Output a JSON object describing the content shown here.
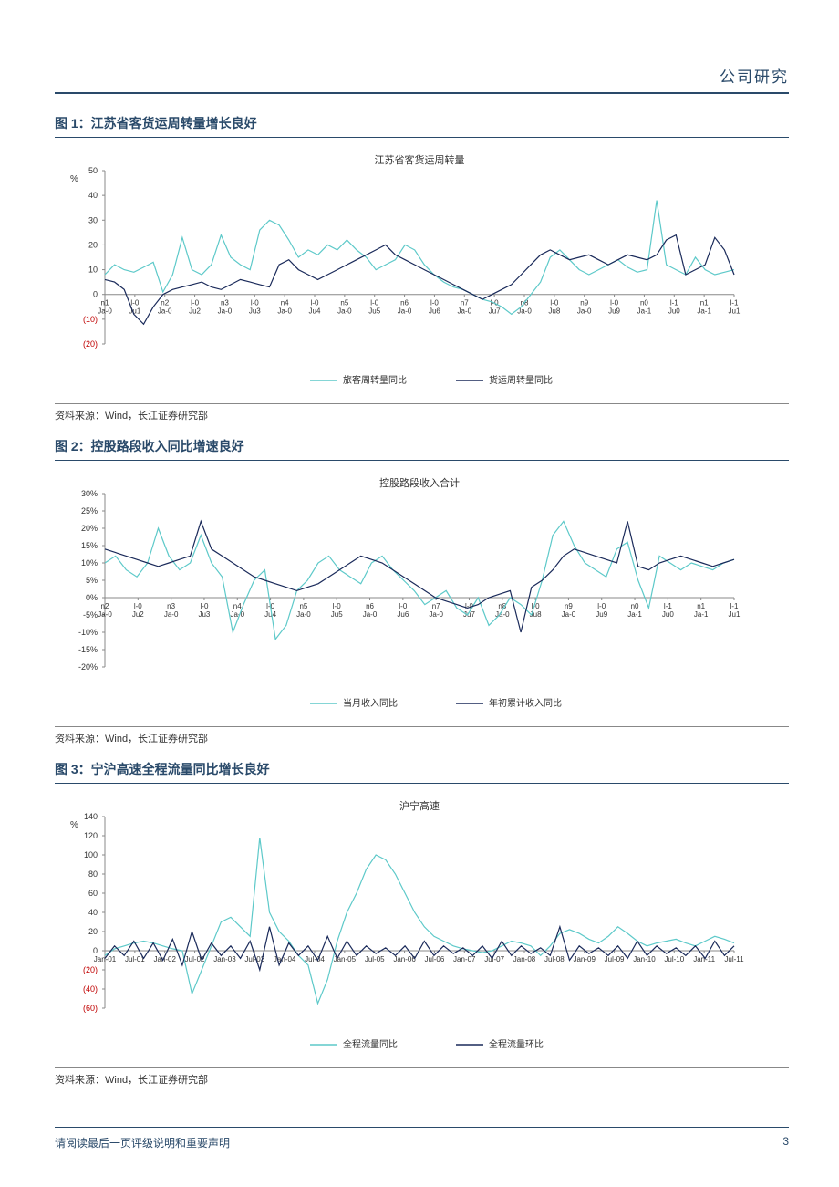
{
  "header": {
    "title": "公司研究"
  },
  "figures": [
    {
      "title": "图 1：江苏省客货运周转量增长良好",
      "chart": {
        "type": "line",
        "inner_title": "江苏省客货运周转量",
        "y_unit": "%",
        "ylim": [
          -20,
          50
        ],
        "ytick_step": 10,
        "neg_color": "#c00000",
        "xlabels": [
          "n1 Ja-0",
          "l-0 Ju1",
          "n2 Ja-0",
          "l-0 Ju2",
          "n3 Ja-0",
          "l-0 Ju3",
          "n4 Ja-0",
          "l-0 Ju4",
          "n5 Ja-0",
          "l-0 Ju5",
          "n6 Ja-0",
          "l-0 Ju6",
          "n7 Ja-0",
          "l-0 Ju7",
          "n8 Ja-0",
          "l-0 Ju8",
          "n9 Ja-0",
          "l-0 Ju9",
          "n0 Ja-1",
          "l-1 Ju0",
          "n1 Ja-1",
          "l-1 Ju1"
        ],
        "series": [
          {
            "name": "旅客周转量同比",
            "color": "#5dc9c9",
            "values": [
              8,
              12,
              10,
              9,
              11,
              13,
              1,
              8,
              23,
              10,
              8,
              12,
              24,
              15,
              12,
              10,
              26,
              30,
              28,
              22,
              15,
              18,
              16,
              20,
              18,
              22,
              18,
              15,
              10,
              12,
              14,
              20,
              18,
              12,
              8,
              5,
              3,
              2,
              0,
              -2,
              -3,
              -5,
              -8,
              -5,
              0,
              5,
              15,
              18,
              14,
              10,
              8,
              10,
              12,
              14,
              11,
              9,
              10,
              38,
              12,
              10,
              8,
              15,
              10,
              8,
              9,
              10
            ]
          },
          {
            "name": "货运周转量同比",
            "color": "#1a2a5a",
            "values": [
              6,
              5,
              2,
              -8,
              -12,
              -5,
              0,
              2,
              3,
              4,
              5,
              3,
              2,
              4,
              6,
              5,
              4,
              3,
              12,
              14,
              10,
              8,
              6,
              8,
              10,
              12,
              14,
              16,
              18,
              20,
              16,
              14,
              12,
              10,
              8,
              6,
              4,
              2,
              0,
              -2,
              0,
              2,
              4,
              8,
              12,
              16,
              18,
              16,
              14,
              15,
              16,
              14,
              12,
              14,
              16,
              15,
              14,
              16,
              22,
              24,
              8,
              10,
              12,
              23,
              18,
              8
            ]
          }
        ],
        "legend_y_offset": 0
      },
      "source": "资料来源：Wind，长江证券研究部"
    },
    {
      "title": "图 2：控股路段收入同比增速良好",
      "chart": {
        "type": "line",
        "inner_title": "控股路段收入合计",
        "y_unit": "",
        "ylim": [
          -20,
          30
        ],
        "ytick_step": 5,
        "suffix": "%",
        "neg_color": "#333",
        "xlabels": [
          "n2 Ja-0",
          "l-0 Ju2",
          "n3 Ja-0",
          "l-0 Ju3",
          "n4 Ja-0",
          "l-0 Ju4",
          "n5 Ja-0",
          "l-0 Ju5",
          "n6 Ja-0",
          "l-0 Ju6",
          "n7 Ja-0",
          "l-0 Ju7",
          "n8 Ja-0",
          "l-0 Ju8",
          "n9 Ja-0",
          "l-0 Ju9",
          "n0 Ja-1",
          "l-1 Ju0",
          "n1 Ja-1",
          "l-1 Ju1"
        ],
        "series": [
          {
            "name": "当月收入同比",
            "color": "#5dc9c9",
            "values": [
              10,
              12,
              8,
              6,
              10,
              20,
              12,
              8,
              10,
              18,
              10,
              6,
              -10,
              -2,
              5,
              8,
              -12,
              -8,
              2,
              5,
              10,
              12,
              8,
              6,
              4,
              10,
              12,
              8,
              5,
              2,
              -2,
              0,
              2,
              -3,
              -5,
              0,
              -8,
              -5,
              0,
              -2,
              -5,
              5,
              18,
              22,
              15,
              10,
              8,
              6,
              14,
              16,
              5,
              -3,
              12,
              10,
              8,
              10,
              9,
              8,
              10,
              11
            ]
          },
          {
            "name": "年初累计收入同比",
            "color": "#1a2a5a",
            "values": [
              14,
              13,
              12,
              11,
              10,
              9,
              10,
              11,
              12,
              22,
              14,
              12,
              10,
              8,
              6,
              5,
              4,
              3,
              2,
              3,
              4,
              6,
              8,
              10,
              12,
              11,
              10,
              8,
              6,
              4,
              2,
              0,
              -1,
              -2,
              -3,
              -2,
              0,
              1,
              2,
              -10,
              3,
              5,
              8,
              12,
              14,
              13,
              12,
              11,
              10,
              22,
              9,
              8,
              10,
              11,
              12,
              11,
              10,
              9,
              10,
              11
            ]
          }
        ],
        "legend_y_offset": 0
      },
      "source": "资料来源：Wind，长江证券研究部"
    },
    {
      "title": "图 3：宁沪高速全程流量同比增长良好",
      "chart": {
        "type": "line",
        "inner_title": "沪宁高速",
        "y_unit": "%",
        "ylim": [
          -60,
          140
        ],
        "ytick_step": 20,
        "neg_color": "#c00000",
        "xlabels": [
          "Jan-01",
          "Jul-01",
          "Jan-02",
          "Jul-02",
          "Jan-03",
          "Jul-03",
          "Jan-04",
          "Jul-04",
          "Jan-05",
          "Jul-05",
          "Jan-06",
          "Jul-06",
          "Jan-07",
          "Jul-07",
          "Jan-08",
          "Jul-08",
          "Jan-09",
          "Jul-09",
          "Jan-10",
          "Jul-10",
          "Jan-11",
          "Jul-11"
        ],
        "series": [
          {
            "name": "全程流量同比",
            "color": "#5dc9c9",
            "values": [
              -5,
              2,
              5,
              8,
              10,
              8,
              5,
              2,
              0,
              -45,
              -20,
              5,
              30,
              35,
              25,
              15,
              118,
              40,
              20,
              10,
              -5,
              -15,
              -55,
              -30,
              10,
              40,
              60,
              85,
              100,
              95,
              80,
              60,
              40,
              25,
              15,
              10,
              5,
              2,
              0,
              -2,
              0,
              5,
              10,
              8,
              5,
              -5,
              5,
              18,
              22,
              18,
              12,
              8,
              15,
              25,
              18,
              10,
              5,
              8,
              10,
              12,
              8,
              5,
              10,
              15,
              12,
              8
            ]
          },
          {
            "name": "全程流量环比",
            "color": "#1a2a5a",
            "values": [
              -8,
              5,
              -5,
              10,
              -8,
              8,
              -10,
              12,
              -15,
              20,
              -10,
              8,
              -5,
              5,
              -8,
              10,
              -20,
              25,
              -15,
              8,
              -5,
              5,
              -10,
              15,
              -8,
              10,
              -5,
              5,
              -3,
              3,
              -5,
              5,
              -8,
              10,
              -5,
              5,
              -3,
              3,
              -5,
              5,
              -8,
              10,
              -5,
              5,
              -3,
              3,
              -5,
              25,
              -10,
              5,
              -3,
              3,
              -5,
              5,
              -8,
              10,
              -5,
              5,
              -3,
              3,
              -5,
              5,
              -8,
              10,
              -5,
              5
            ]
          }
        ],
        "legend_y_offset": 0
      },
      "source": "资料来源：Wind，长江证券研究部"
    }
  ],
  "footer": {
    "text": "请阅读最后一页评级说明和重要声明",
    "page": "3"
  },
  "style": {
    "accent": "#2a4a6a",
    "background": "#ffffff",
    "axis_color": "#888888"
  }
}
